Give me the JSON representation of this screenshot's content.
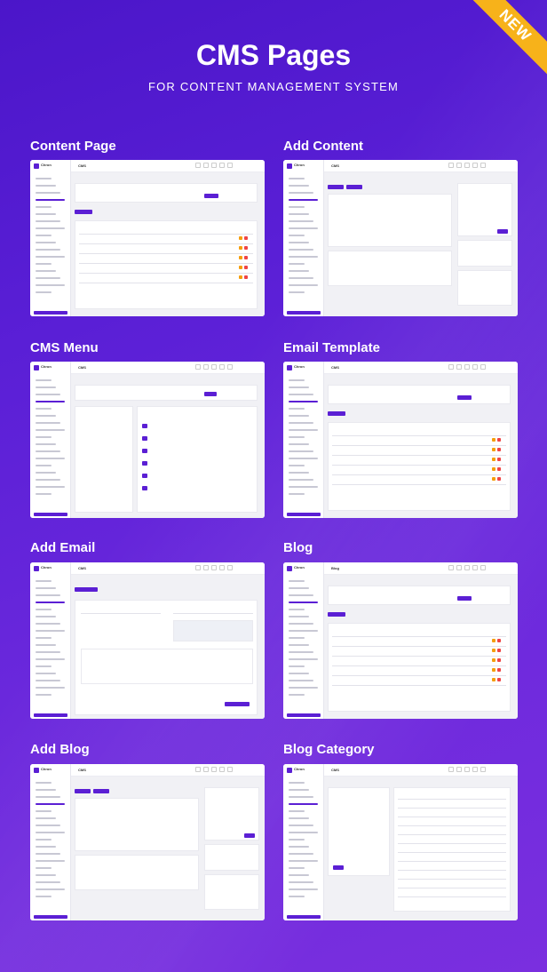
{
  "header": {
    "title": "CMS Pages",
    "subtitle": "FOR CONTENT MANAGEMENT SYSTEM",
    "badge": "NEW"
  },
  "colors": {
    "background_top": "#4b16c9",
    "background_bottom": "#7a2fdf",
    "accent": "#5b1fd4",
    "badge": "#f7b21a"
  },
  "panels": [
    {
      "label": "Content Page",
      "app": "Chron",
      "screen": "CMS"
    },
    {
      "label": "Add Content",
      "app": "Chron",
      "screen": "CMS"
    },
    {
      "label": "CMS Menu",
      "app": "Chron",
      "screen": "CMS"
    },
    {
      "label": "Email Template",
      "app": "Chron",
      "screen": "CMS"
    },
    {
      "label": "Add Email",
      "app": "Chron",
      "screen": "CMS"
    },
    {
      "label": "Blog",
      "app": "Chron",
      "screen": "Blog"
    },
    {
      "label": "Add Blog",
      "app": "Chron",
      "screen": "CMS"
    },
    {
      "label": "Blog Category",
      "app": "Chron",
      "screen": "CMS"
    }
  ]
}
